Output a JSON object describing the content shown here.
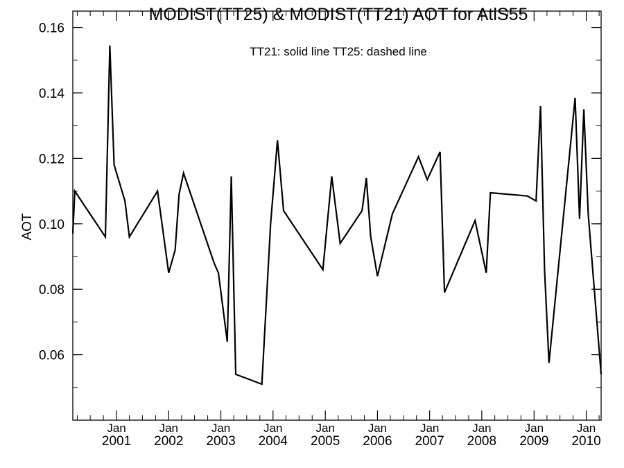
{
  "chart_data": {
    "type": "line",
    "title": "MODIST(TT25) & MODIST(TT21)  AOT for AtlS55",
    "annotation": "TT21: solid line   TT25: dashed line",
    "xlabel": "",
    "ylabel": "AOT",
    "xlim": [
      "2000-03-01",
      "2010-04-15"
    ],
    "ylim": [
      0.04,
      0.165
    ],
    "yticks": [
      {
        "value": 0.06,
        "label": "0.06"
      },
      {
        "value": 0.08,
        "label": "0.08"
      },
      {
        "value": 0.1,
        "label": "0.10"
      },
      {
        "value": 0.12,
        "label": "0.12"
      },
      {
        "value": 0.14,
        "label": "0.14"
      },
      {
        "value": 0.16,
        "label": "0.16"
      }
    ],
    "xticks": [
      {
        "date": "2001-01-01",
        "month": "Jan",
        "year": "2001"
      },
      {
        "date": "2002-01-01",
        "month": "Jan",
        "year": "2002"
      },
      {
        "date": "2003-01-01",
        "month": "Jan",
        "year": "2003"
      },
      {
        "date": "2004-01-01",
        "month": "Jan",
        "year": "2004"
      },
      {
        "date": "2005-01-01",
        "month": "Jan",
        "year": "2005"
      },
      {
        "date": "2006-01-01",
        "month": "Jan",
        "year": "2006"
      },
      {
        "date": "2007-01-01",
        "month": "Jan",
        "year": "2007"
      },
      {
        "date": "2008-01-01",
        "month": "Jan",
        "year": "2008"
      },
      {
        "date": "2009-01-01",
        "month": "Jan",
        "year": "2009"
      },
      {
        "date": "2010-01-01",
        "month": "Jan",
        "year": "2010"
      }
    ],
    "grid": false,
    "series": [
      {
        "style": "solid",
        "points": [
          [
            "2000-03-01",
            0.097
          ],
          [
            "2000-03-15",
            0.11
          ],
          [
            "2000-10-15",
            0.096
          ],
          [
            "2000-11-15",
            0.1545
          ],
          [
            "2000-12-15",
            0.118
          ],
          [
            "2001-03-01",
            0.107
          ],
          [
            "2001-04-01",
            0.096
          ],
          [
            "2001-10-15",
            0.11
          ],
          [
            "2002-01-01",
            0.085
          ],
          [
            "2002-02-15",
            0.092
          ],
          [
            "2002-03-15",
            0.109
          ],
          [
            "2002-04-15",
            0.1155
          ],
          [
            "2002-11-15",
            0.088
          ],
          [
            "2002-12-15",
            0.085
          ],
          [
            "2003-02-15",
            0.064
          ],
          [
            "2003-03-15",
            0.1145
          ],
          [
            "2003-04-15",
            0.054
          ],
          [
            "2003-10-15",
            0.051
          ],
          [
            "2003-12-15",
            0.1
          ],
          [
            "2004-02-01",
            0.1255
          ],
          [
            "2004-03-15",
            0.104
          ],
          [
            "2004-12-15",
            0.086
          ],
          [
            "2005-02-15",
            0.1145
          ],
          [
            "2005-04-15",
            0.094
          ],
          [
            "2005-09-15",
            0.104
          ],
          [
            "2005-10-15",
            0.114
          ],
          [
            "2005-11-15",
            0.096
          ],
          [
            "2006-01-01",
            0.084
          ],
          [
            "2006-04-15",
            0.103
          ],
          [
            "2006-10-15",
            0.1205
          ],
          [
            "2006-12-15",
            0.1135
          ],
          [
            "2007-03-15",
            0.122
          ],
          [
            "2007-04-15",
            0.079
          ],
          [
            "2007-11-15",
            0.101
          ],
          [
            "2008-02-01",
            0.085
          ],
          [
            "2008-03-01",
            0.1095
          ],
          [
            "2008-11-15",
            0.1085
          ],
          [
            "2009-01-15",
            0.107
          ],
          [
            "2009-02-15",
            0.136
          ],
          [
            "2009-03-15",
            0.086
          ],
          [
            "2009-04-15",
            0.0575
          ],
          [
            "2009-10-15",
            0.1385
          ],
          [
            "2009-11-15",
            0.1015
          ],
          [
            "2009-12-15",
            0.135
          ],
          [
            "2010-01-15",
            0.103
          ],
          [
            "2010-04-15",
            0.054
          ]
        ]
      }
    ]
  }
}
